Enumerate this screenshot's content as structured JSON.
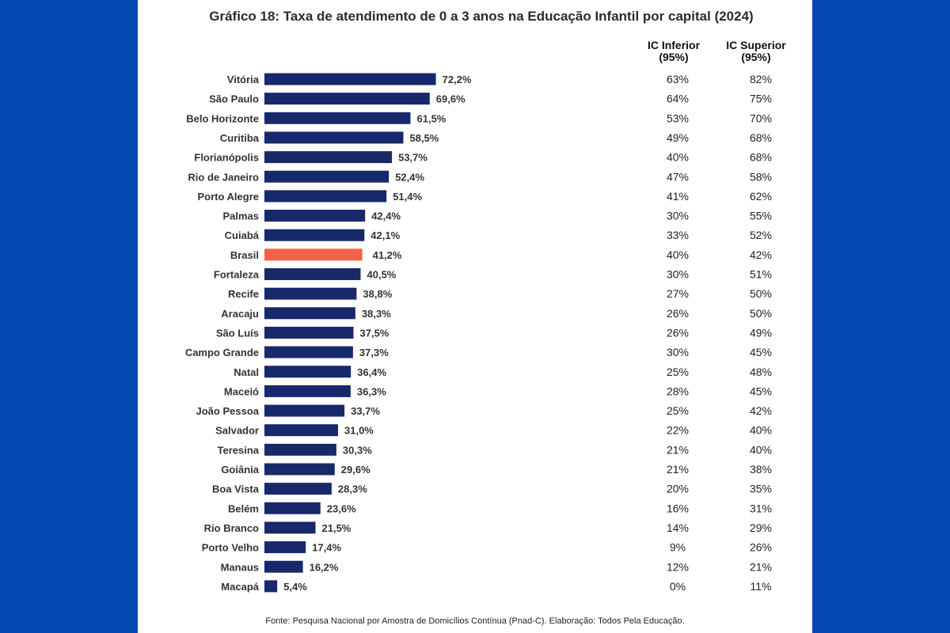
{
  "title": "Gráfico 18: Taxa de atendimento de 0 a 3 anos na Educação Infantil por capital (2024)",
  "source": "Fonte: Pesquisa Nacional por Amostra de Domicílios Contínua (Pnad-C). Elaboração: Todos Pela Educação.",
  "columns": {
    "ic_inferior": {
      "line1": "IC Inferior",
      "line2": "(95%)"
    },
    "ic_superior": {
      "line1": "IC Superior",
      "line2": "(95%)"
    }
  },
  "colors": {
    "background": "#0648b3",
    "bar": "#17286b",
    "highlight": "#f4604a"
  },
  "chart_data": {
    "type": "bar",
    "orientation": "horizontal",
    "title": "Gráfico 18: Taxa de atendimento de 0 a 3 anos na Educação Infantil por capital (2024)",
    "xlim": [
      0,
      100
    ],
    "grid": false,
    "highlight": "Brasil",
    "categories": [
      "Vitória",
      "São Paulo",
      "Belo Horizonte",
      "Curitiba",
      "Florianópolis",
      "Rio de Janeiro",
      "Porto Alegre",
      "Palmas",
      "Cuiabá",
      "Brasil",
      "Fortaleza",
      "Recife",
      "Aracaju",
      "São Luís",
      "Campo Grande",
      "Natal",
      "Maceió",
      "João Pessoa",
      "Salvador",
      "Teresina",
      "Goiânia",
      "Boa Vista",
      "Belém",
      "Rio Branco",
      "Porto Velho",
      "Manaus",
      "Macapá"
    ],
    "values": [
      72.2,
      69.6,
      61.5,
      58.5,
      53.7,
      52.4,
      51.4,
      42.4,
      42.1,
      41.2,
      40.5,
      38.8,
      38.3,
      37.5,
      37.3,
      36.4,
      36.3,
      33.7,
      31.0,
      30.3,
      29.6,
      28.3,
      23.6,
      21.5,
      17.4,
      16.2,
      5.4
    ],
    "value_labels": [
      "72,2%",
      "69,6%",
      "61,5%",
      "58,5%",
      "53,7%",
      "52,4%",
      "51,4%",
      "42,4%",
      "42,1%",
      "41,2%",
      "40,5%",
      "38,8%",
      "38,3%",
      "37,5%",
      "37,3%",
      "36,4%",
      "36,3%",
      "33,7%",
      "31,0%",
      "30,3%",
      "29,6%",
      "28,3%",
      "23,6%",
      "21,5%",
      "17,4%",
      "16,2%",
      "5,4%"
    ],
    "ic_inferior": [
      "63%",
      "64%",
      "53%",
      "49%",
      "40%",
      "47%",
      "41%",
      "30%",
      "33%",
      "40%",
      "30%",
      "27%",
      "26%",
      "26%",
      "30%",
      "25%",
      "28%",
      "25%",
      "22%",
      "21%",
      "21%",
      "20%",
      "16%",
      "14%",
      "9%",
      "12%",
      "0%"
    ],
    "ic_superior": [
      "82%",
      "75%",
      "70%",
      "68%",
      "68%",
      "58%",
      "62%",
      "55%",
      "52%",
      "42%",
      "51%",
      "50%",
      "50%",
      "49%",
      "45%",
      "48%",
      "45%",
      "42%",
      "40%",
      "40%",
      "38%",
      "35%",
      "31%",
      "29%",
      "26%",
      "21%",
      "11%"
    ]
  }
}
